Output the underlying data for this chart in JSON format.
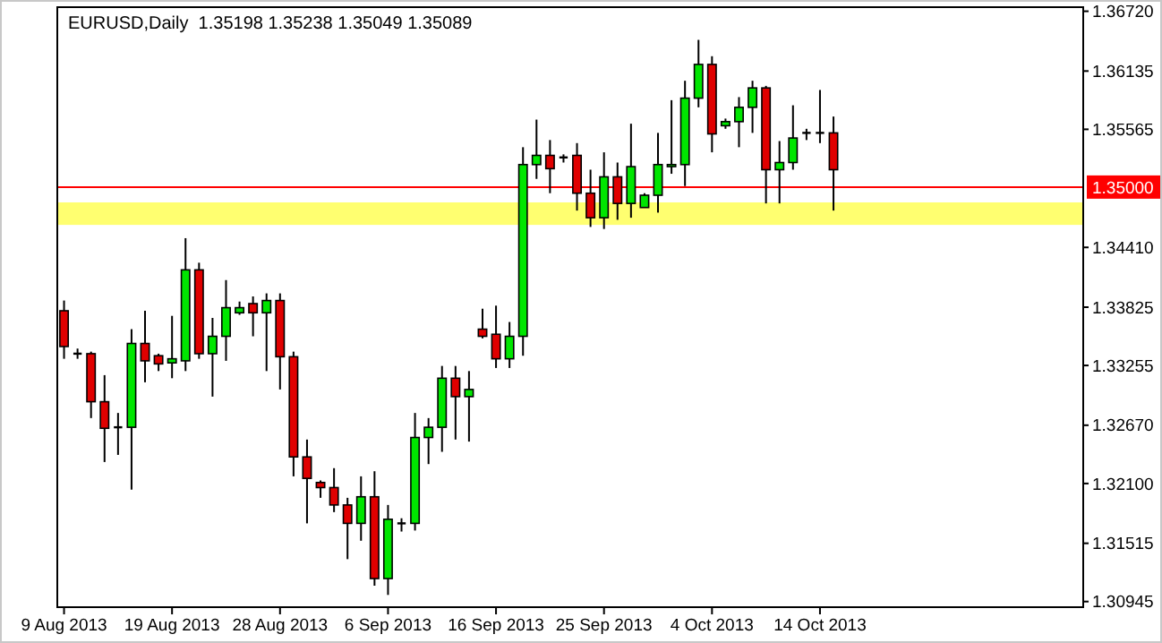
{
  "chart_data": {
    "type": "candlestick",
    "title": "EURUSD,Daily  1.35198 1.35238 1.35049 1.35089",
    "categories": [
      "9 Aug 2013",
      null,
      null,
      null,
      null,
      null,
      null,
      null,
      "19 Aug 2013",
      null,
      null,
      null,
      null,
      null,
      null,
      null,
      "28 Aug 2013",
      null,
      null,
      null,
      null,
      null,
      null,
      null,
      "6 Sep 2013",
      null,
      null,
      null,
      null,
      null,
      null,
      null,
      "16 Sep 2013",
      null,
      null,
      null,
      null,
      null,
      null,
      null,
      "25 Sep 2013",
      null,
      null,
      null,
      null,
      null,
      null,
      null,
      "4 Oct 2013",
      null,
      null,
      null,
      null,
      null,
      null,
      null,
      "14 Oct 2013",
      null,
      null,
      null,
      null,
      null,
      null,
      null,
      null,
      null,
      null,
      null,
      null,
      null,
      null,
      null,
      null,
      null,
      null,
      null
    ],
    "ohlc": [
      [
        1.3379,
        1.3389,
        1.3332,
        1.3344
      ],
      [
        1.3337,
        1.3342,
        1.3332,
        1.3337
      ],
      [
        1.3337,
        1.3339,
        1.3274,
        1.329
      ],
      [
        1.329,
        1.3316,
        1.3231,
        1.3264
      ],
      [
        1.3264,
        1.3279,
        1.3238,
        1.3265
      ],
      [
        1.3265,
        1.3361,
        1.3204,
        1.3347
      ],
      [
        1.3347,
        1.3379,
        1.3309,
        1.333
      ],
      [
        1.3335,
        1.3337,
        1.332,
        1.3327
      ],
      [
        1.3328,
        1.3374,
        1.3313,
        1.3332
      ],
      [
        1.333,
        1.345,
        1.332,
        1.3419
      ],
      [
        1.3419,
        1.3426,
        1.3332,
        1.3337
      ],
      [
        1.3337,
        1.3372,
        1.3295,
        1.3354
      ],
      [
        1.3354,
        1.3409,
        1.333,
        1.3382
      ],
      [
        1.3377,
        1.3388,
        1.3375,
        1.3382
      ],
      [
        1.3386,
        1.3393,
        1.3354,
        1.3377
      ],
      [
        1.3377,
        1.3396,
        1.332,
        1.3389
      ],
      [
        1.3389,
        1.3396,
        1.3302,
        1.3334
      ],
      [
        1.3334,
        1.3339,
        1.3217,
        1.3236
      ],
      [
        1.3236,
        1.3253,
        1.3171,
        1.3215
      ],
      [
        1.3211,
        1.3213,
        1.3196,
        1.3206
      ],
      [
        1.3206,
        1.3225,
        1.3182,
        1.3189
      ],
      [
        1.3189,
        1.3196,
        1.3136,
        1.3171
      ],
      [
        1.3171,
        1.3217,
        1.3154,
        1.3197
      ],
      [
        1.3197,
        1.3222,
        1.311,
        1.3117
      ],
      [
        1.3117,
        1.3189,
        1.3101,
        1.3175
      ],
      [
        1.3171,
        1.3176,
        1.3163,
        1.3171
      ],
      [
        1.3171,
        1.3279,
        1.3164,
        1.3255
      ],
      [
        1.3255,
        1.3274,
        1.3229,
        1.3265
      ],
      [
        1.3265,
        1.3325,
        1.3241,
        1.3313
      ],
      [
        1.3313,
        1.3325,
        1.3253,
        1.3295
      ],
      [
        1.3295,
        1.332,
        1.3251,
        1.3302
      ],
      [
        1.3361,
        1.3381,
        1.3352,
        1.3354
      ],
      [
        1.3356,
        1.3384,
        1.3323,
        1.3332
      ],
      [
        1.3332,
        1.3368,
        1.3323,
        1.3354
      ],
      [
        1.3354,
        1.3539,
        1.3335,
        1.3522
      ],
      [
        1.3522,
        1.3566,
        1.3508,
        1.3531
      ],
      [
        1.3531,
        1.3546,
        1.3494,
        1.3518
      ],
      [
        1.3529,
        1.3532,
        1.3524,
        1.3529
      ],
      [
        1.3531,
        1.3543,
        1.3477,
        1.3494
      ],
      [
        1.3494,
        1.3517,
        1.3461,
        1.347
      ],
      [
        1.347,
        1.3534,
        1.3459,
        1.351
      ],
      [
        1.351,
        1.3524,
        1.3468,
        1.3484
      ],
      [
        1.3484,
        1.3562,
        1.347,
        1.352
      ],
      [
        1.348,
        1.3494,
        1.348,
        1.3492
      ],
      [
        1.3492,
        1.3553,
        1.3475,
        1.3522
      ],
      [
        1.352,
        1.3585,
        1.3513,
        1.3522
      ],
      [
        1.3522,
        1.3604,
        1.3501,
        1.3587
      ],
      [
        1.3587,
        1.3644,
        1.3578,
        1.362
      ],
      [
        1.362,
        1.3628,
        1.3534,
        1.3552
      ],
      [
        1.356,
        1.3567,
        1.3557,
        1.3564
      ],
      [
        1.3564,
        1.3588,
        1.3539,
        1.3578
      ],
      [
        1.3578,
        1.3604,
        1.3553,
        1.3597
      ],
      [
        1.3597,
        1.3599,
        1.3484,
        1.3517
      ],
      [
        1.3517,
        1.3545,
        1.3484,
        1.3524
      ],
      [
        1.3524,
        1.358,
        1.3517,
        1.3548
      ],
      [
        1.3553,
        1.3557,
        1.3546,
        1.3553
      ],
      [
        1.3553,
        1.3595,
        1.3543,
        1.3553
      ],
      [
        1.3553,
        1.3569,
        1.3477,
        1.3517
      ],
      null,
      null,
      null,
      null,
      null,
      null,
      null,
      null,
      null,
      null,
      null,
      null,
      null,
      null,
      null,
      null,
      null,
      null
    ],
    "colors": [
      "#e00000",
      "#000000",
      "#e00000",
      "#e00000",
      "#000000",
      "#00e600",
      "#e00000",
      "#e00000",
      "#00e600",
      "#00e600",
      "#e00000",
      "#00e600",
      "#00e600",
      "#00e600",
      "#e00000",
      "#00e600",
      "#e00000",
      "#e00000",
      "#e00000",
      "#e00000",
      "#e00000",
      "#e00000",
      "#00e600",
      "#e00000",
      "#00e600",
      "#000000",
      "#00e600",
      "#00e600",
      "#00e600",
      "#e00000",
      "#00e600",
      "#e00000",
      "#e00000",
      "#00e600",
      "#00e600",
      "#00e600",
      "#e00000",
      "#000000",
      "#e00000",
      "#e00000",
      "#00e600",
      "#e00000",
      "#00e600",
      "#00e600",
      "#00e600",
      "#00e600",
      "#00e600",
      "#00e600",
      "#e00000",
      "#00e600",
      "#00e600",
      "#00e600",
      "#e00000",
      "#00e600",
      "#00e600",
      "#000000",
      "#000000",
      "#e00000",
      null,
      null,
      null,
      null,
      null,
      null,
      null,
      null,
      null,
      null,
      null,
      null,
      null,
      null,
      null,
      null,
      null,
      null
    ],
    "ylim": [
      1.3089,
      1.3676
    ],
    "yticks": [
      1.30945,
      1.31515,
      {
        "value": 1.321,
        "label": "1.32100"
      },
      {
        "value": 1.3267,
        "label": "1.32670"
      },
      1.33255,
      1.33825,
      {
        "value": 1.3441,
        "label": "1.34410"
      },
      1.35565,
      1.36135,
      {
        "value": 1.3672,
        "label": "1.36720"
      }
    ],
    "ref_lines": [
      {
        "axis": "y",
        "value": 1.35,
        "label": "1.35000",
        "color": "#ff0000"
      }
    ],
    "bands": [
      {
        "axis": "y",
        "from": 1.3463,
        "to": 1.3485,
        "color": "#ffff70"
      }
    ],
    "grid": false
  }
}
